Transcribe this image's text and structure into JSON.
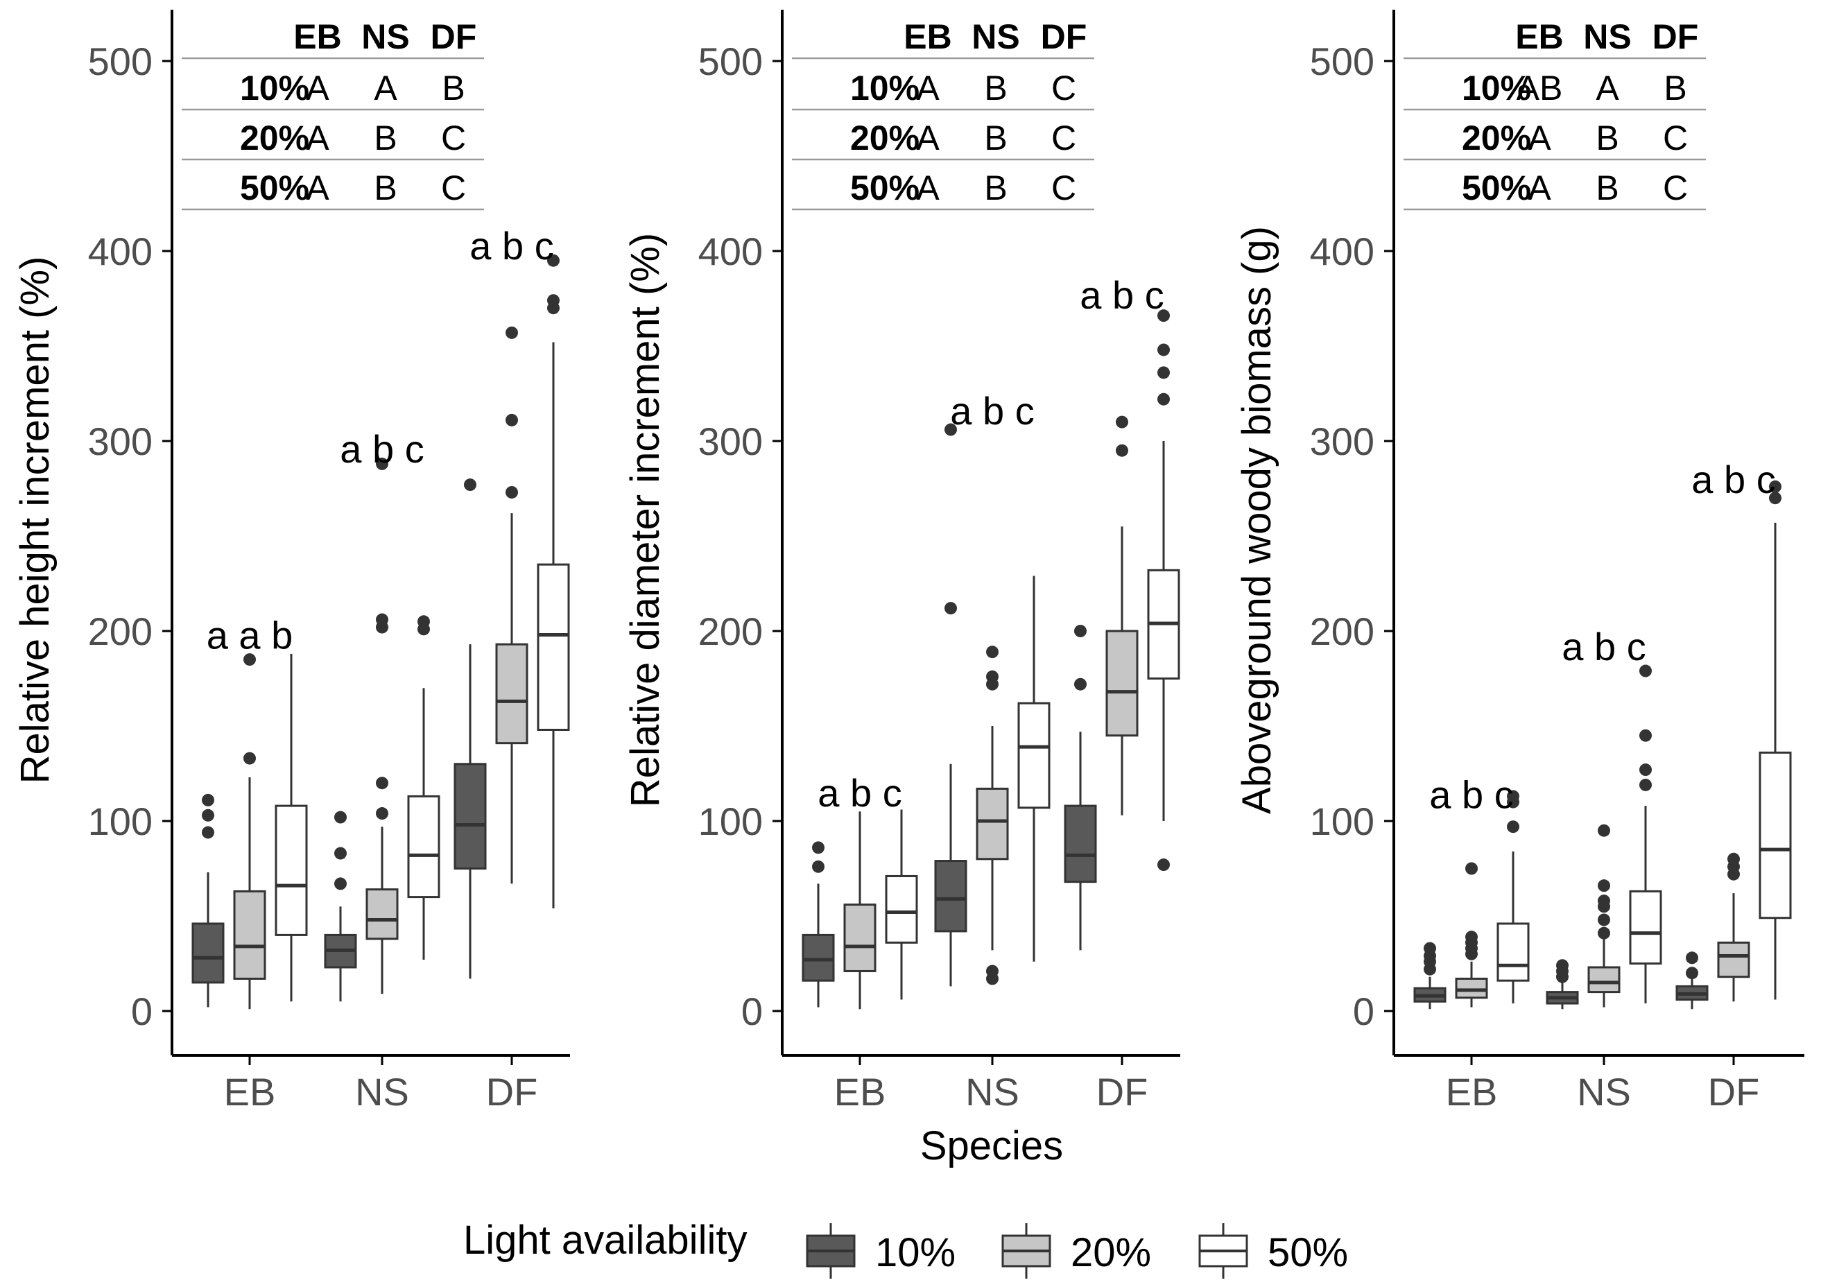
{
  "chart_data": [
    {
      "type": "box",
      "panel": "height",
      "ylabel": "Relative height increment (%)",
      "ylim": [
        -20,
        520
      ],
      "yticks": [
        0,
        100,
        200,
        300,
        400,
        500
      ],
      "categories": [
        "EB",
        "NS",
        "DF"
      ],
      "table": {
        "headers": [
          "EB",
          "NS",
          "DF"
        ],
        "rows": [
          {
            "label": "10%",
            "cells": [
              "A",
              "A",
              "B"
            ]
          },
          {
            "label": "20%",
            "cells": [
              "A",
              "B",
              "C"
            ]
          },
          {
            "label": "50%",
            "cells": [
              "A",
              "B",
              "C"
            ]
          }
        ]
      },
      "groups": [
        {
          "category": "EB",
          "letters": "a a b",
          "letters_y": 198,
          "boxes": [
            {
              "series": "10%",
              "q1": 15,
              "median": 28,
              "q3": 46,
              "whisker_low": 2,
              "whisker_high": 73,
              "outliers": [
                94,
                103,
                111
              ]
            },
            {
              "series": "20%",
              "q1": 17,
              "median": 34,
              "q3": 63,
              "whisker_low": 1,
              "whisker_high": 123,
              "outliers": [
                133,
                185
              ]
            },
            {
              "series": "50%",
              "q1": 40,
              "median": 66,
              "q3": 108,
              "whisker_low": 5,
              "whisker_high": 188,
              "outliers": []
            }
          ]
        },
        {
          "category": "NS",
          "letters": "a b c",
          "letters_y": 296,
          "boxes": [
            {
              "series": "10%",
              "q1": 23,
              "median": 32,
              "q3": 40,
              "whisker_low": 5,
              "whisker_high": 55,
              "outliers": [
                67,
                83,
                102
              ]
            },
            {
              "series": "20%",
              "q1": 38,
              "median": 48,
              "q3": 64,
              "whisker_low": 9,
              "whisker_high": 97,
              "outliers": [
                104,
                120,
                202,
                206,
                288
              ]
            },
            {
              "series": "50%",
              "q1": 60,
              "median": 82,
              "q3": 113,
              "whisker_low": 27,
              "whisker_high": 170,
              "outliers": [
                201,
                205
              ]
            }
          ]
        },
        {
          "category": "DF",
          "letters": "a b c",
          "letters_y": 403,
          "boxes": [
            {
              "series": "10%",
              "q1": 75,
              "median": 98,
              "q3": 130,
              "whisker_low": 17,
              "whisker_high": 193,
              "outliers": [
                277
              ]
            },
            {
              "series": "20%",
              "q1": 141,
              "median": 163,
              "q3": 193,
              "whisker_low": 67,
              "whisker_high": 262,
              "outliers": [
                273,
                311,
                357
              ]
            },
            {
              "series": "50%",
              "q1": 148,
              "median": 198,
              "q3": 235,
              "whisker_low": 54,
              "whisker_high": 352,
              "outliers": [
                370,
                374,
                395
              ]
            }
          ]
        }
      ]
    },
    {
      "type": "box",
      "panel": "diameter",
      "ylabel": "Relative diameter increment (%)",
      "ylim": [
        -20,
        520
      ],
      "yticks": [
        0,
        100,
        200,
        300,
        400,
        500
      ],
      "categories": [
        "EB",
        "NS",
        "DF"
      ],
      "table": {
        "headers": [
          "EB",
          "NS",
          "DF"
        ],
        "rows": [
          {
            "label": "10%",
            "cells": [
              "A",
              "B",
              "C"
            ]
          },
          {
            "label": "20%",
            "cells": [
              "A",
              "B",
              "C"
            ]
          },
          {
            "label": "50%",
            "cells": [
              "A",
              "B",
              "C"
            ]
          }
        ]
      },
      "groups": [
        {
          "category": "EB",
          "letters": "a b c",
          "letters_y": 115,
          "boxes": [
            {
              "series": "10%",
              "q1": 16,
              "median": 27,
              "q3": 40,
              "whisker_low": 2,
              "whisker_high": 67,
              "outliers": [
                76,
                86
              ]
            },
            {
              "series": "20%",
              "q1": 21,
              "median": 34,
              "q3": 56,
              "whisker_low": 1,
              "whisker_high": 105,
              "outliers": []
            },
            {
              "series": "50%",
              "q1": 36,
              "median": 52,
              "q3": 71,
              "whisker_low": 6,
              "whisker_high": 106,
              "outliers": []
            }
          ]
        },
        {
          "category": "NS",
          "letters": "a b c",
          "letters_y": 316,
          "boxes": [
            {
              "series": "10%",
              "q1": 42,
              "median": 59,
              "q3": 79,
              "whisker_low": 13,
              "whisker_high": 130,
              "outliers": [
                212,
                306
              ]
            },
            {
              "series": "20%",
              "q1": 80,
              "median": 100,
              "q3": 117,
              "whisker_low": 32,
              "whisker_high": 150,
              "outliers": [
                17,
                21,
                172,
                176,
                189
              ]
            },
            {
              "series": "50%",
              "q1": 107,
              "median": 139,
              "q3": 162,
              "whisker_low": 26,
              "whisker_high": 229,
              "outliers": []
            }
          ]
        },
        {
          "category": "DF",
          "letters": "a b c",
          "letters_y": 377,
          "boxes": [
            {
              "series": "10%",
              "q1": 68,
              "median": 82,
              "q3": 108,
              "whisker_low": 32,
              "whisker_high": 147,
              "outliers": [
                172,
                200
              ]
            },
            {
              "series": "20%",
              "q1": 145,
              "median": 168,
              "q3": 200,
              "whisker_low": 103,
              "whisker_high": 255,
              "outliers": [
                295,
                310
              ]
            },
            {
              "series": "50%",
              "q1": 175,
              "median": 204,
              "q3": 232,
              "whisker_low": 100,
              "whisker_high": 300,
              "outliers": [
                77,
                322,
                336,
                348,
                366
              ]
            }
          ]
        }
      ]
    },
    {
      "type": "box",
      "panel": "biomass",
      "ylabel": "Aboveground woody biomass (g)",
      "ylim": [
        -20,
        520
      ],
      "yticks": [
        0,
        100,
        200,
        300,
        400,
        500
      ],
      "categories": [
        "EB",
        "NS",
        "DF"
      ],
      "table": {
        "headers": [
          "EB",
          "NS",
          "DF"
        ],
        "rows": [
          {
            "label": "10%",
            "cells": [
              "AB",
              "A",
              "B"
            ]
          },
          {
            "label": "20%",
            "cells": [
              "A",
              "B",
              "C"
            ]
          },
          {
            "label": "50%",
            "cells": [
              "A",
              "B",
              "C"
            ]
          }
        ]
      },
      "groups": [
        {
          "category": "EB",
          "letters": "a b c",
          "letters_y": 114,
          "boxes": [
            {
              "series": "10%",
              "q1": 5,
              "median": 8,
              "q3": 12,
              "whisker_low": 1,
              "whisker_high": 18,
              "outliers": [
                22,
                26,
                29,
                33
              ]
            },
            {
              "series": "20%",
              "q1": 7,
              "median": 11,
              "q3": 17,
              "whisker_low": 2,
              "whisker_high": 26,
              "outliers": [
                30,
                33,
                36,
                39,
                75
              ]
            },
            {
              "series": "50%",
              "q1": 16,
              "median": 24,
              "q3": 46,
              "whisker_low": 4,
              "whisker_high": 84,
              "outliers": [
                97,
                110,
                113
              ]
            }
          ]
        },
        {
          "category": "NS",
          "letters": "a b c",
          "letters_y": 192,
          "boxes": [
            {
              "series": "10%",
              "q1": 4,
              "median": 7,
              "q3": 10,
              "whisker_low": 1,
              "whisker_high": 15,
              "outliers": [
                18,
                21,
                24
              ]
            },
            {
              "series": "20%",
              "q1": 10,
              "median": 15,
              "q3": 23,
              "whisker_low": 2,
              "whisker_high": 38,
              "outliers": [
                41,
                48,
                55,
                58,
                66,
                95
              ]
            },
            {
              "series": "50%",
              "q1": 25,
              "median": 41,
              "q3": 63,
              "whisker_low": 4,
              "whisker_high": 108,
              "outliers": [
                119,
                127,
                145,
                179
              ]
            }
          ]
        },
        {
          "category": "DF",
          "letters": "a b c",
          "letters_y": 280,
          "boxes": [
            {
              "series": "10%",
              "q1": 6,
              "median": 9,
              "q3": 13,
              "whisker_low": 1,
              "whisker_high": 18,
              "outliers": [
                20,
                28
              ]
            },
            {
              "series": "20%",
              "q1": 18,
              "median": 29,
              "q3": 36,
              "whisker_low": 5,
              "whisker_high": 62,
              "outliers": [
                72,
                76,
                80
              ]
            },
            {
              "series": "50%",
              "q1": 49,
              "median": 85,
              "q3": 136,
              "whisker_low": 6,
              "whisker_high": 257,
              "outliers": [
                270,
                276
              ]
            }
          ]
        }
      ]
    }
  ],
  "xlabel": "Species",
  "legend": {
    "title": "Light availability",
    "items": [
      {
        "label": "10%",
        "color": "#595959"
      },
      {
        "label": "20%",
        "color": "#c6c6c6"
      },
      {
        "label": "50%",
        "color": "#ffffff"
      }
    ]
  },
  "colors": {
    "axis": "#000000",
    "tick_label": "#4d4d4d",
    "box_stroke": "#333333",
    "table_rule": "#9a9a9a"
  }
}
